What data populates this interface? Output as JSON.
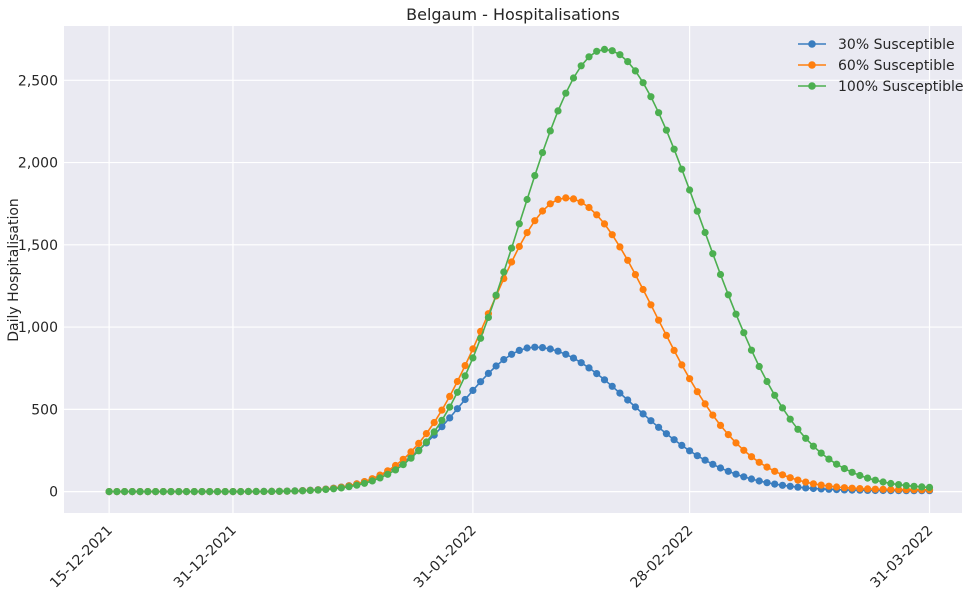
{
  "chart_data": {
    "type": "line",
    "title": "Belgaum - Hospitalisations",
    "xlabel": "",
    "ylabel": "Daily Hospitalisation",
    "x_start": "15-12-2021",
    "x_end": "31-03-2022",
    "x_ticks": [
      "15-12-2021",
      "31-12-2021",
      "31-01-2022",
      "28-02-2022",
      "31-03-2022"
    ],
    "y_ticks": [
      "0",
      "500",
      "1,000",
      "1,500",
      "2,000",
      "2,500"
    ],
    "ylim": [
      -130,
      2830
    ],
    "grid": true,
    "legend_position": "top-right",
    "series": [
      {
        "name": "30% Susceptible",
        "color": "#3A7DBF",
        "peak_date": "08-02-2022",
        "peak_value": 875,
        "width_before_days": 9.5,
        "width_after_days": 12.5
      },
      {
        "name": "60% Susceptible",
        "color": "#FF7F0E",
        "peak_date": "12-02-2022",
        "peak_value": 1780,
        "width_before_days": 10.0,
        "width_after_days": 11.5
      },
      {
        "name": "100% Susceptible",
        "color": "#4CAF50",
        "peak_date": "17-02-2022",
        "peak_value": 2680,
        "width_before_days": 11.0,
        "width_after_days": 12.5
      }
    ]
  }
}
